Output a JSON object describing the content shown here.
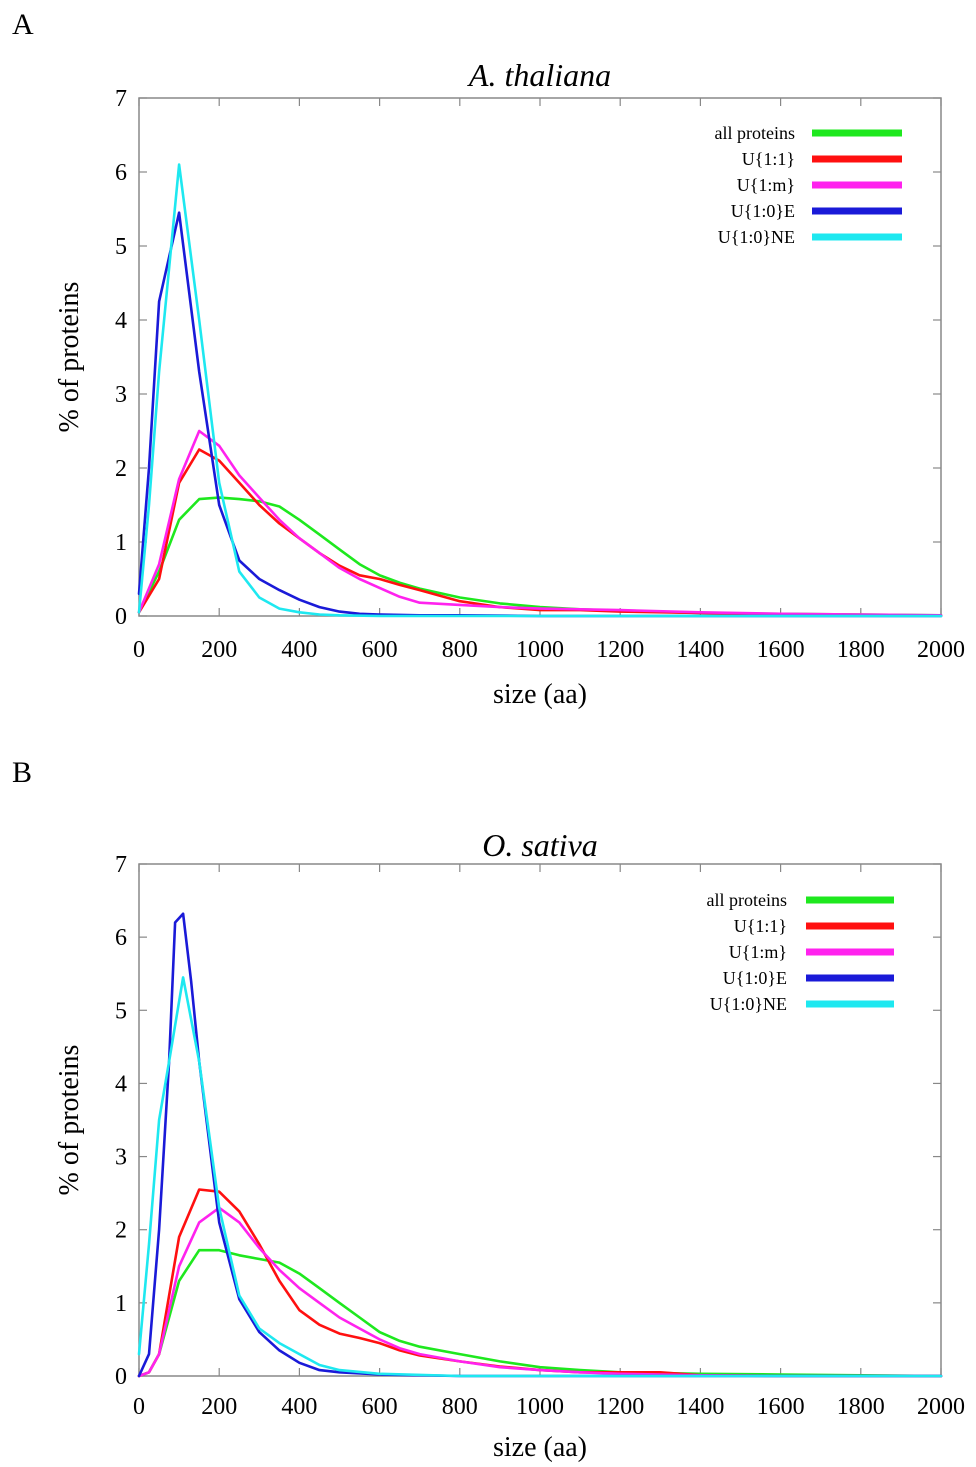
{
  "panels": [
    {
      "letter": "A"
    },
    {
      "letter": "B"
    }
  ],
  "chart_data": [
    {
      "type": "line",
      "title": "A. thaliana",
      "xlabel": "size (aa)",
      "ylabel": "% of proteins",
      "xlim": [
        0,
        2000
      ],
      "ylim": [
        0,
        7
      ],
      "xticks": [
        0,
        200,
        400,
        600,
        800,
        1000,
        1200,
        1400,
        1600,
        1800,
        2000
      ],
      "yticks": [
        0,
        1,
        2,
        3,
        4,
        5,
        6,
        7
      ],
      "ytick_labels": [
        "0",
        "1",
        "2",
        "3",
        "4",
        "5",
        "6",
        "7"
      ],
      "grid": false,
      "legend": "top-right",
      "series": [
        {
          "name": "all proteins",
          "color": "#1ee81e",
          "x": [
            0,
            50,
            100,
            150,
            200,
            250,
            300,
            350,
            400,
            450,
            500,
            550,
            600,
            650,
            700,
            800,
            900,
            1000,
            1100,
            1200,
            1400,
            1600,
            1800,
            2000
          ],
          "y": [
            0.05,
            0.6,
            1.3,
            1.58,
            1.6,
            1.58,
            1.55,
            1.48,
            1.3,
            1.1,
            0.9,
            0.7,
            0.55,
            0.45,
            0.37,
            0.25,
            0.17,
            0.12,
            0.09,
            0.07,
            0.04,
            0.03,
            0.02,
            0.01
          ]
        },
        {
          "name": "U{1:1}",
          "color": "#ff1010",
          "x": [
            0,
            50,
            100,
            150,
            200,
            250,
            300,
            350,
            400,
            450,
            500,
            550,
            600,
            650,
            700,
            800,
            900,
            1000,
            1100,
            1200,
            1400,
            1600,
            1800,
            2000
          ],
          "y": [
            0.05,
            0.5,
            1.8,
            2.25,
            2.1,
            1.8,
            1.5,
            1.25,
            1.05,
            0.85,
            0.68,
            0.55,
            0.5,
            0.42,
            0.35,
            0.2,
            0.12,
            0.08,
            0.08,
            0.06,
            0.04,
            0.02,
            0.01,
            0.01
          ]
        },
        {
          "name": "U{1:m}",
          "color": "#ff22ee",
          "x": [
            0,
            50,
            100,
            150,
            200,
            250,
            300,
            350,
            400,
            450,
            500,
            550,
            600,
            650,
            700,
            800,
            900,
            1000,
            1100,
            1200,
            1400,
            1600,
            1800,
            2000
          ],
          "y": [
            0.05,
            0.7,
            1.85,
            2.5,
            2.3,
            1.9,
            1.6,
            1.3,
            1.05,
            0.85,
            0.65,
            0.5,
            0.38,
            0.26,
            0.18,
            0.15,
            0.12,
            0.1,
            0.09,
            0.08,
            0.05,
            0.03,
            0.02,
            0.01
          ]
        },
        {
          "name": "U{1:0}E",
          "color": "#1a1ad8",
          "x": [
            0,
            25,
            50,
            100,
            150,
            200,
            250,
            300,
            350,
            400,
            450,
            500,
            550,
            600,
            700,
            800,
            1000,
            1400,
            2000
          ],
          "y": [
            0.3,
            2.0,
            4.25,
            5.45,
            3.3,
            1.5,
            0.75,
            0.5,
            0.35,
            0.22,
            0.12,
            0.06,
            0.03,
            0.02,
            0.01,
            0.01,
            0.0,
            0.0,
            0.0
          ]
        },
        {
          "name": "U{1:0}NE",
          "color": "#1ee8f0",
          "x": [
            0,
            25,
            50,
            100,
            150,
            200,
            250,
            300,
            350,
            400,
            450,
            500,
            600,
            800,
            1000,
            1400,
            2000
          ],
          "y": [
            0.05,
            1.5,
            3.3,
            6.1,
            4.0,
            1.8,
            0.6,
            0.25,
            0.1,
            0.05,
            0.02,
            0.01,
            0.0,
            0.0,
            0.0,
            0.0,
            0.0
          ]
        }
      ]
    },
    {
      "type": "line",
      "title": "O. sativa",
      "xlabel": "size (aa)",
      "ylabel": "% of proteins",
      "xlim": [
        0,
        2000
      ],
      "ylim": [
        0,
        7
      ],
      "xticks": [
        0,
        200,
        400,
        600,
        800,
        1000,
        1200,
        1400,
        1600,
        1800,
        2000
      ],
      "yticks": [
        0,
        1,
        2,
        3,
        4,
        5,
        6,
        7
      ],
      "ytick_labels": [
        "0",
        "1",
        "2",
        "3",
        "4",
        "5",
        "6",
        "7"
      ],
      "grid": false,
      "legend": "top-right",
      "series": [
        {
          "name": "all proteins",
          "color": "#1ee81e",
          "x": [
            0,
            25,
            50,
            100,
            150,
            200,
            250,
            300,
            350,
            400,
            450,
            500,
            550,
            600,
            650,
            700,
            800,
            900,
            1000,
            1100,
            1200,
            1400,
            1600,
            1800,
            2000
          ],
          "y": [
            0.0,
            0.05,
            0.3,
            1.3,
            1.72,
            1.72,
            1.65,
            1.6,
            1.55,
            1.4,
            1.2,
            1.0,
            0.8,
            0.6,
            0.48,
            0.4,
            0.3,
            0.2,
            0.12,
            0.08,
            0.05,
            0.03,
            0.02,
            0.01,
            0.0
          ]
        },
        {
          "name": "U{1:1}",
          "color": "#ff1010",
          "x": [
            0,
            25,
            50,
            100,
            150,
            200,
            250,
            300,
            350,
            400,
            450,
            500,
            550,
            600,
            650,
            700,
            800,
            900,
            1000,
            1100,
            1200,
            1300,
            1400,
            1600,
            2000
          ],
          "y": [
            0.0,
            0.05,
            0.3,
            1.9,
            2.55,
            2.52,
            2.25,
            1.8,
            1.3,
            0.9,
            0.7,
            0.58,
            0.52,
            0.45,
            0.35,
            0.28,
            0.2,
            0.13,
            0.08,
            0.05,
            0.05,
            0.05,
            0.01,
            0.0,
            0.0
          ]
        },
        {
          "name": "U{1:m}",
          "color": "#ff22ee",
          "x": [
            0,
            25,
            50,
            100,
            150,
            200,
            250,
            300,
            350,
            400,
            450,
            500,
            550,
            600,
            650,
            700,
            800,
            900,
            1000,
            1100,
            1200,
            1400,
            1600,
            2000
          ],
          "y": [
            0.0,
            0.05,
            0.3,
            1.5,
            2.1,
            2.3,
            2.1,
            1.75,
            1.45,
            1.2,
            1.0,
            0.8,
            0.65,
            0.5,
            0.38,
            0.3,
            0.2,
            0.12,
            0.08,
            0.05,
            0.03,
            0.01,
            0.0,
            0.0
          ]
        },
        {
          "name": "U{1:0}E",
          "color": "#1a1ad8",
          "x": [
            0,
            25,
            50,
            75,
            90,
            110,
            130,
            150,
            175,
            200,
            250,
            300,
            350,
            400,
            450,
            500,
            600,
            800,
            1000,
            1400,
            2000
          ],
          "y": [
            0.0,
            0.3,
            2.0,
            4.3,
            6.2,
            6.32,
            5.4,
            4.3,
            3.2,
            2.1,
            1.05,
            0.6,
            0.35,
            0.18,
            0.08,
            0.05,
            0.02,
            0.0,
            0.0,
            0.0,
            0.0
          ]
        },
        {
          "name": "U{1:0}NE",
          "color": "#1ee8f0",
          "x": [
            0,
            25,
            50,
            75,
            110,
            150,
            200,
            250,
            300,
            350,
            400,
            450,
            500,
            600,
            800,
            1000,
            1400,
            2000
          ],
          "y": [
            0.3,
            1.8,
            3.5,
            4.3,
            5.45,
            4.3,
            2.3,
            1.1,
            0.65,
            0.45,
            0.3,
            0.15,
            0.08,
            0.03,
            0.0,
            0.0,
            0.0,
            0.0
          ]
        }
      ]
    }
  ]
}
